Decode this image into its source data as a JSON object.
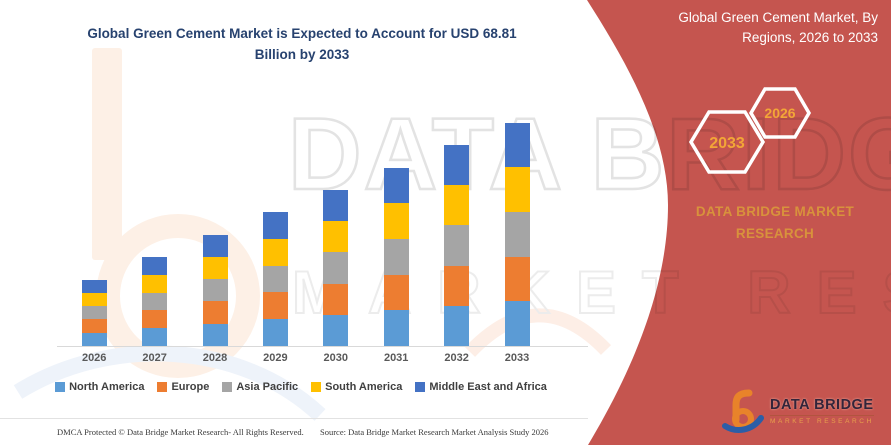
{
  "main_title": "Global Green Cement Market is Expected to Account for USD 68.81 Billion by 2033",
  "panel": {
    "title": "Global Green Cement Market, By Regions, 2026 to 2033",
    "hexagon_back_year": "2033",
    "hexagon_front_year": "2026",
    "brand_text": "DATA BRIDGE MARKET RESEARCH",
    "logo_name": "DATA BRIDGE",
    "logo_sub": "MARKET RESEARCH",
    "background_color": "#C5554F",
    "accent_gold": "#F2A637",
    "brand_text_color": "#D8923C"
  },
  "watermark": {
    "line1": "DATA BRIDGE",
    "line2": "MARKET RESEARCH"
  },
  "chart_data": {
    "type": "bar",
    "stacked": true,
    "title": "Global Green Cement Market is Expected to Account for USD 68.81 Billion by 2033",
    "unit": "USD Billion",
    "categories": [
      "2026",
      "2027",
      "2028",
      "2029",
      "2030",
      "2031",
      "2032",
      "2033"
    ],
    "series": [
      {
        "name": "North America",
        "color": "#5B9BD5",
        "values": [
          4.1,
          5.48,
          6.86,
          8.24,
          9.62,
          11.0,
          12.38,
          13.76
        ]
      },
      {
        "name": "Europe",
        "color": "#ED7D31",
        "values": [
          4.1,
          5.48,
          6.86,
          8.24,
          9.62,
          11.0,
          12.38,
          13.76
        ]
      },
      {
        "name": "Asia Pacific",
        "color": "#A5A5A5",
        "values": [
          4.1,
          5.48,
          6.86,
          8.24,
          9.62,
          11.0,
          12.38,
          13.76
        ]
      },
      {
        "name": "South America",
        "color": "#FFC000",
        "values": [
          4.1,
          5.48,
          6.86,
          8.24,
          9.62,
          11.0,
          12.38,
          13.76
        ]
      },
      {
        "name": "Middle East and Africa",
        "color": "#4472C4",
        "values": [
          4.1,
          5.48,
          6.86,
          8.24,
          9.62,
          11.0,
          12.38,
          13.76
        ]
      }
    ],
    "totals": [
      20.48,
      27.38,
      34.29,
      41.19,
      48.1,
      55.0,
      61.91,
      68.81
    ],
    "highlight_value": "68.81",
    "ylim": [
      0,
      72
    ],
    "grid": false,
    "xlabel": "",
    "ylabel": "",
    "legend_position": "bottom"
  },
  "footer": {
    "left": "DMCA Protected © Data Bridge Market Research-  All Rights Reserved.",
    "right": "Source: Data Bridge Market Research  Market Analysis Study 2026"
  }
}
